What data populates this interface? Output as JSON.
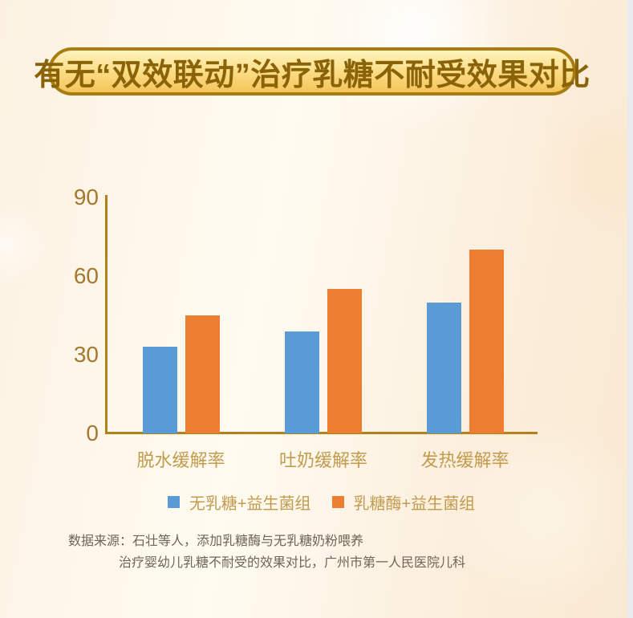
{
  "page": {
    "background_base": "#FCF1E1",
    "background_right": "#F9E9D2",
    "scrollbar_color": "#E9EAED"
  },
  "title_banner": {
    "text": "有无“双效联动”治疗乳糖不耐受效果对比",
    "fill_top": "#FFF3BE",
    "fill_bottom": "#F3C55A",
    "border_color": "#A87C12",
    "text_color": "#8A6309"
  },
  "chart_data": {
    "type": "bar",
    "title": "有无“双效联动”治疗乳糖不耐受效果对比",
    "categories": [
      "脱水缓解率",
      "吐奶缓解率",
      "发热缓解率"
    ],
    "series": [
      {
        "name": "无乳糖+益生菌组",
        "color": "#5B9BD5",
        "values": [
          33,
          39,
          50
        ]
      },
      {
        "name": "乳糖酶+益生菌组",
        "color": "#ED7D31",
        "values": [
          45,
          55,
          70
        ]
      }
    ],
    "xlabel": "",
    "ylabel": "",
    "ylim": [
      0,
      90
    ],
    "yticks": [
      0,
      30,
      60,
      90
    ],
    "grid": false,
    "legend_position": "bottom",
    "axis_color": "#B28119",
    "tick_label_color": "#A4782E",
    "category_label_color": "#C39B4F",
    "legend_text_color": "#C39B4F"
  },
  "source": {
    "line1": "数据来源：石壮等人，添加乳糖酶与无乳糖奶粉喂养",
    "line2": "治疗婴幼儿乳糖不耐受的效果对比，广州市第一人民医院儿科"
  }
}
